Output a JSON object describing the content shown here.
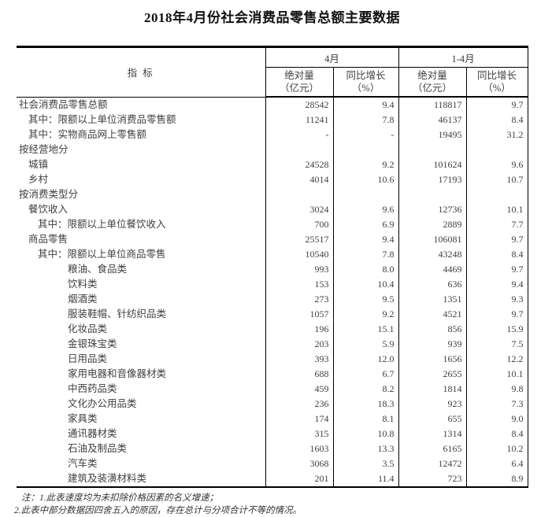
{
  "title": "2018年4月份社会消费品零售总额主要数据",
  "table": {
    "indicator_header": "指  标",
    "col_groups": [
      {
        "label": "4月"
      },
      {
        "label": "1-4月"
      }
    ],
    "sub": {
      "abs1": "绝对量",
      "abs2": "（亿元）",
      "yoy1": "同比增长",
      "yoy2": "（%）"
    },
    "rows": [
      {
        "label": "社会消费品零售总额",
        "indent": 0,
        "values": [
          "28542",
          "9.4",
          "118817",
          "9.7"
        ]
      },
      {
        "label": "其中：限额以上单位消费品零售额",
        "indent": 1,
        "values": [
          "11241",
          "7.8",
          "46137",
          "8.4"
        ]
      },
      {
        "label": "其中：实物商品网上零售额",
        "indent": 1,
        "values": [
          "-",
          "-",
          "19495",
          "31.2"
        ]
      },
      {
        "label": "按经营地分",
        "indent": 0,
        "values": [
          "",
          "",
          "",
          ""
        ]
      },
      {
        "label": "城镇",
        "indent": 1,
        "values": [
          "24528",
          "9.2",
          "101624",
          "9.6"
        ]
      },
      {
        "label": "乡村",
        "indent": 1,
        "values": [
          "4014",
          "10.6",
          "17193",
          "10.7"
        ]
      },
      {
        "label": "按消费类型分",
        "indent": 0,
        "values": [
          "",
          "",
          "",
          ""
        ]
      },
      {
        "label": "餐饮收入",
        "indent": 1,
        "values": [
          "3024",
          "9.6",
          "12736",
          "10.1"
        ]
      },
      {
        "label": "其中：限额以上单位餐饮收入",
        "indent": 2,
        "values": [
          "700",
          "6.9",
          "2889",
          "7.7"
        ]
      },
      {
        "label": "商品零售",
        "indent": 1,
        "values": [
          "25517",
          "9.4",
          "106081",
          "9.7"
        ]
      },
      {
        "label": "其中：限额以上单位商品零售",
        "indent": 2,
        "values": [
          "10540",
          "7.8",
          "43248",
          "8.4"
        ]
      },
      {
        "label": "粮油、食品类",
        "indent": 3,
        "values": [
          "993",
          "8.0",
          "4469",
          "9.7"
        ]
      },
      {
        "label": "饮料类",
        "indent": 3,
        "values": [
          "153",
          "10.4",
          "636",
          "9.4"
        ]
      },
      {
        "label": "烟酒类",
        "indent": 3,
        "values": [
          "273",
          "9.5",
          "1351",
          "9.3"
        ]
      },
      {
        "label": "服装鞋帽、针纺织品类",
        "indent": 3,
        "values": [
          "1057",
          "9.2",
          "4521",
          "9.7"
        ]
      },
      {
        "label": "化妆品类",
        "indent": 3,
        "values": [
          "196",
          "15.1",
          "856",
          "15.9"
        ]
      },
      {
        "label": "金银珠宝类",
        "indent": 3,
        "values": [
          "203",
          "5.9",
          "939",
          "7.5"
        ]
      },
      {
        "label": "日用品类",
        "indent": 3,
        "values": [
          "393",
          "12.0",
          "1656",
          "12.2"
        ]
      },
      {
        "label": "家用电器和音像器材类",
        "indent": 3,
        "values": [
          "688",
          "6.7",
          "2655",
          "10.1"
        ]
      },
      {
        "label": "中西药品类",
        "indent": 3,
        "values": [
          "459",
          "8.2",
          "1814",
          "9.8"
        ]
      },
      {
        "label": "文化办公用品类",
        "indent": 3,
        "values": [
          "236",
          "18.3",
          "923",
          "7.3"
        ]
      },
      {
        "label": "家具类",
        "indent": 3,
        "values": [
          "174",
          "8.1",
          "655",
          "9.0"
        ]
      },
      {
        "label": "通讯器材类",
        "indent": 3,
        "values": [
          "315",
          "10.8",
          "1314",
          "8.4"
        ]
      },
      {
        "label": "石油及制品类",
        "indent": 3,
        "values": [
          "1603",
          "13.3",
          "6165",
          "10.2"
        ]
      },
      {
        "label": "汽车类",
        "indent": 3,
        "values": [
          "3068",
          "3.5",
          "12472",
          "6.4"
        ]
      },
      {
        "label": "建筑及装潢材料类",
        "indent": 3,
        "values": [
          "201",
          "11.4",
          "723",
          "8.9"
        ]
      }
    ]
  },
  "notes": [
    "注：1.此表速度均为未扣除价格因素的名义增速；",
    "2.此表中部分数据因四舍五入的原因，存在总计与分项合计不等的情况。"
  ]
}
